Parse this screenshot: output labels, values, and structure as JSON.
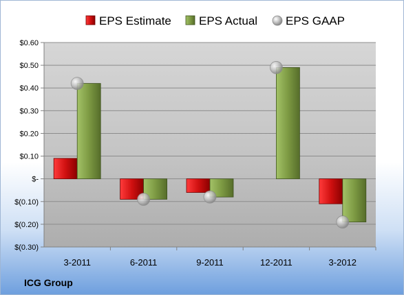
{
  "chart_data": {
    "type": "bar",
    "categories": [
      "3-2011",
      "6-2011",
      "9-2011",
      "12-2011",
      "3-2012"
    ],
    "series": [
      {
        "name": "EPS Estimate",
        "type": "bar",
        "color": "#c00000",
        "values": [
          0.09,
          -0.09,
          -0.06,
          null,
          -0.11
        ]
      },
      {
        "name": "EPS Actual",
        "type": "bar",
        "color": "#77933c",
        "values": [
          0.42,
          -0.09,
          -0.08,
          0.49,
          -0.19
        ]
      },
      {
        "name": "EPS GAAP",
        "type": "scatter",
        "color": "#b0b0b0",
        "values": [
          0.42,
          -0.09,
          -0.08,
          0.49,
          -0.19
        ]
      }
    ],
    "ylim": [
      -0.3,
      0.6
    ],
    "yticks": [
      {
        "value": 0.6,
        "label": "$0.60"
      },
      {
        "value": 0.5,
        "label": "$0.50"
      },
      {
        "value": 0.4,
        "label": "$0.40"
      },
      {
        "value": 0.3,
        "label": "$0.30"
      },
      {
        "value": 0.2,
        "label": "$0.20"
      },
      {
        "value": 0.1,
        "label": "$0.10"
      },
      {
        "value": 0.0,
        "label": "$-"
      },
      {
        "value": -0.1,
        "label": "$(0.10)"
      },
      {
        "value": -0.2,
        "label": "$(0.20)"
      },
      {
        "value": -0.3,
        "label": "$(0.30)"
      }
    ],
    "legend_position": "top",
    "grid": true
  },
  "footer": {
    "company": "ICG Group"
  }
}
